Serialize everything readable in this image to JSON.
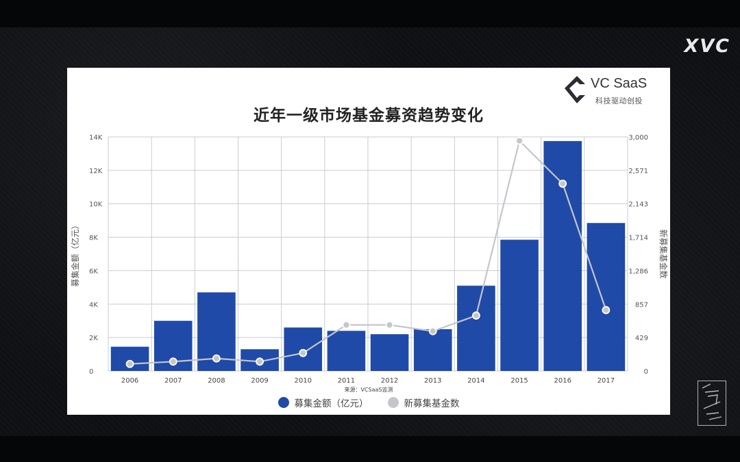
{
  "watermark": {
    "text": "XVC"
  },
  "brand": {
    "name": "VC SaaS",
    "tagline": "科技驱动创投"
  },
  "source_note": "来源：VCSaaS监测",
  "chart_data": {
    "type": "bar",
    "title": "近年一级市场基金募资趋势变化",
    "ylabel": "募集金额（亿元）",
    "y2label": "新募集基金数",
    "categories": [
      "2006",
      "2007",
      "2008",
      "2009",
      "2010",
      "2011",
      "2012",
      "2013",
      "2014",
      "2015",
      "2016",
      "2017"
    ],
    "ylim": [
      0,
      14000
    ],
    "y_ticks": [
      0,
      2000,
      4000,
      6000,
      8000,
      10000,
      12000,
      14000
    ],
    "y_tick_labels": [
      "0",
      "2K",
      "4K",
      "6K",
      "8K",
      "10K",
      "12K",
      "14K"
    ],
    "y2lim": [
      0,
      3000
    ],
    "y2_ticks": [
      0,
      429,
      857,
      1286,
      1714,
      2143,
      2571,
      3000
    ],
    "y2_tick_labels": [
      "0",
      "429",
      "857",
      "1,286",
      "1,714",
      "2,143",
      "2,571",
      "3,000"
    ],
    "grid": true,
    "legend_position": "bottom",
    "series": [
      {
        "name": "募集金额（亿元）",
        "type": "bar",
        "axis": "left",
        "color": "#1f4aa8",
        "values": [
          1450,
          3000,
          4700,
          1300,
          2600,
          2400,
          2200,
          2500,
          5100,
          7850,
          13750,
          8850
        ]
      },
      {
        "name": "新募集基金数",
        "type": "line",
        "axis": "right",
        "color": "#c4c6cc",
        "values": [
          90,
          120,
          160,
          120,
          230,
          590,
          590,
          510,
          710,
          2950,
          2400,
          780
        ]
      }
    ]
  }
}
